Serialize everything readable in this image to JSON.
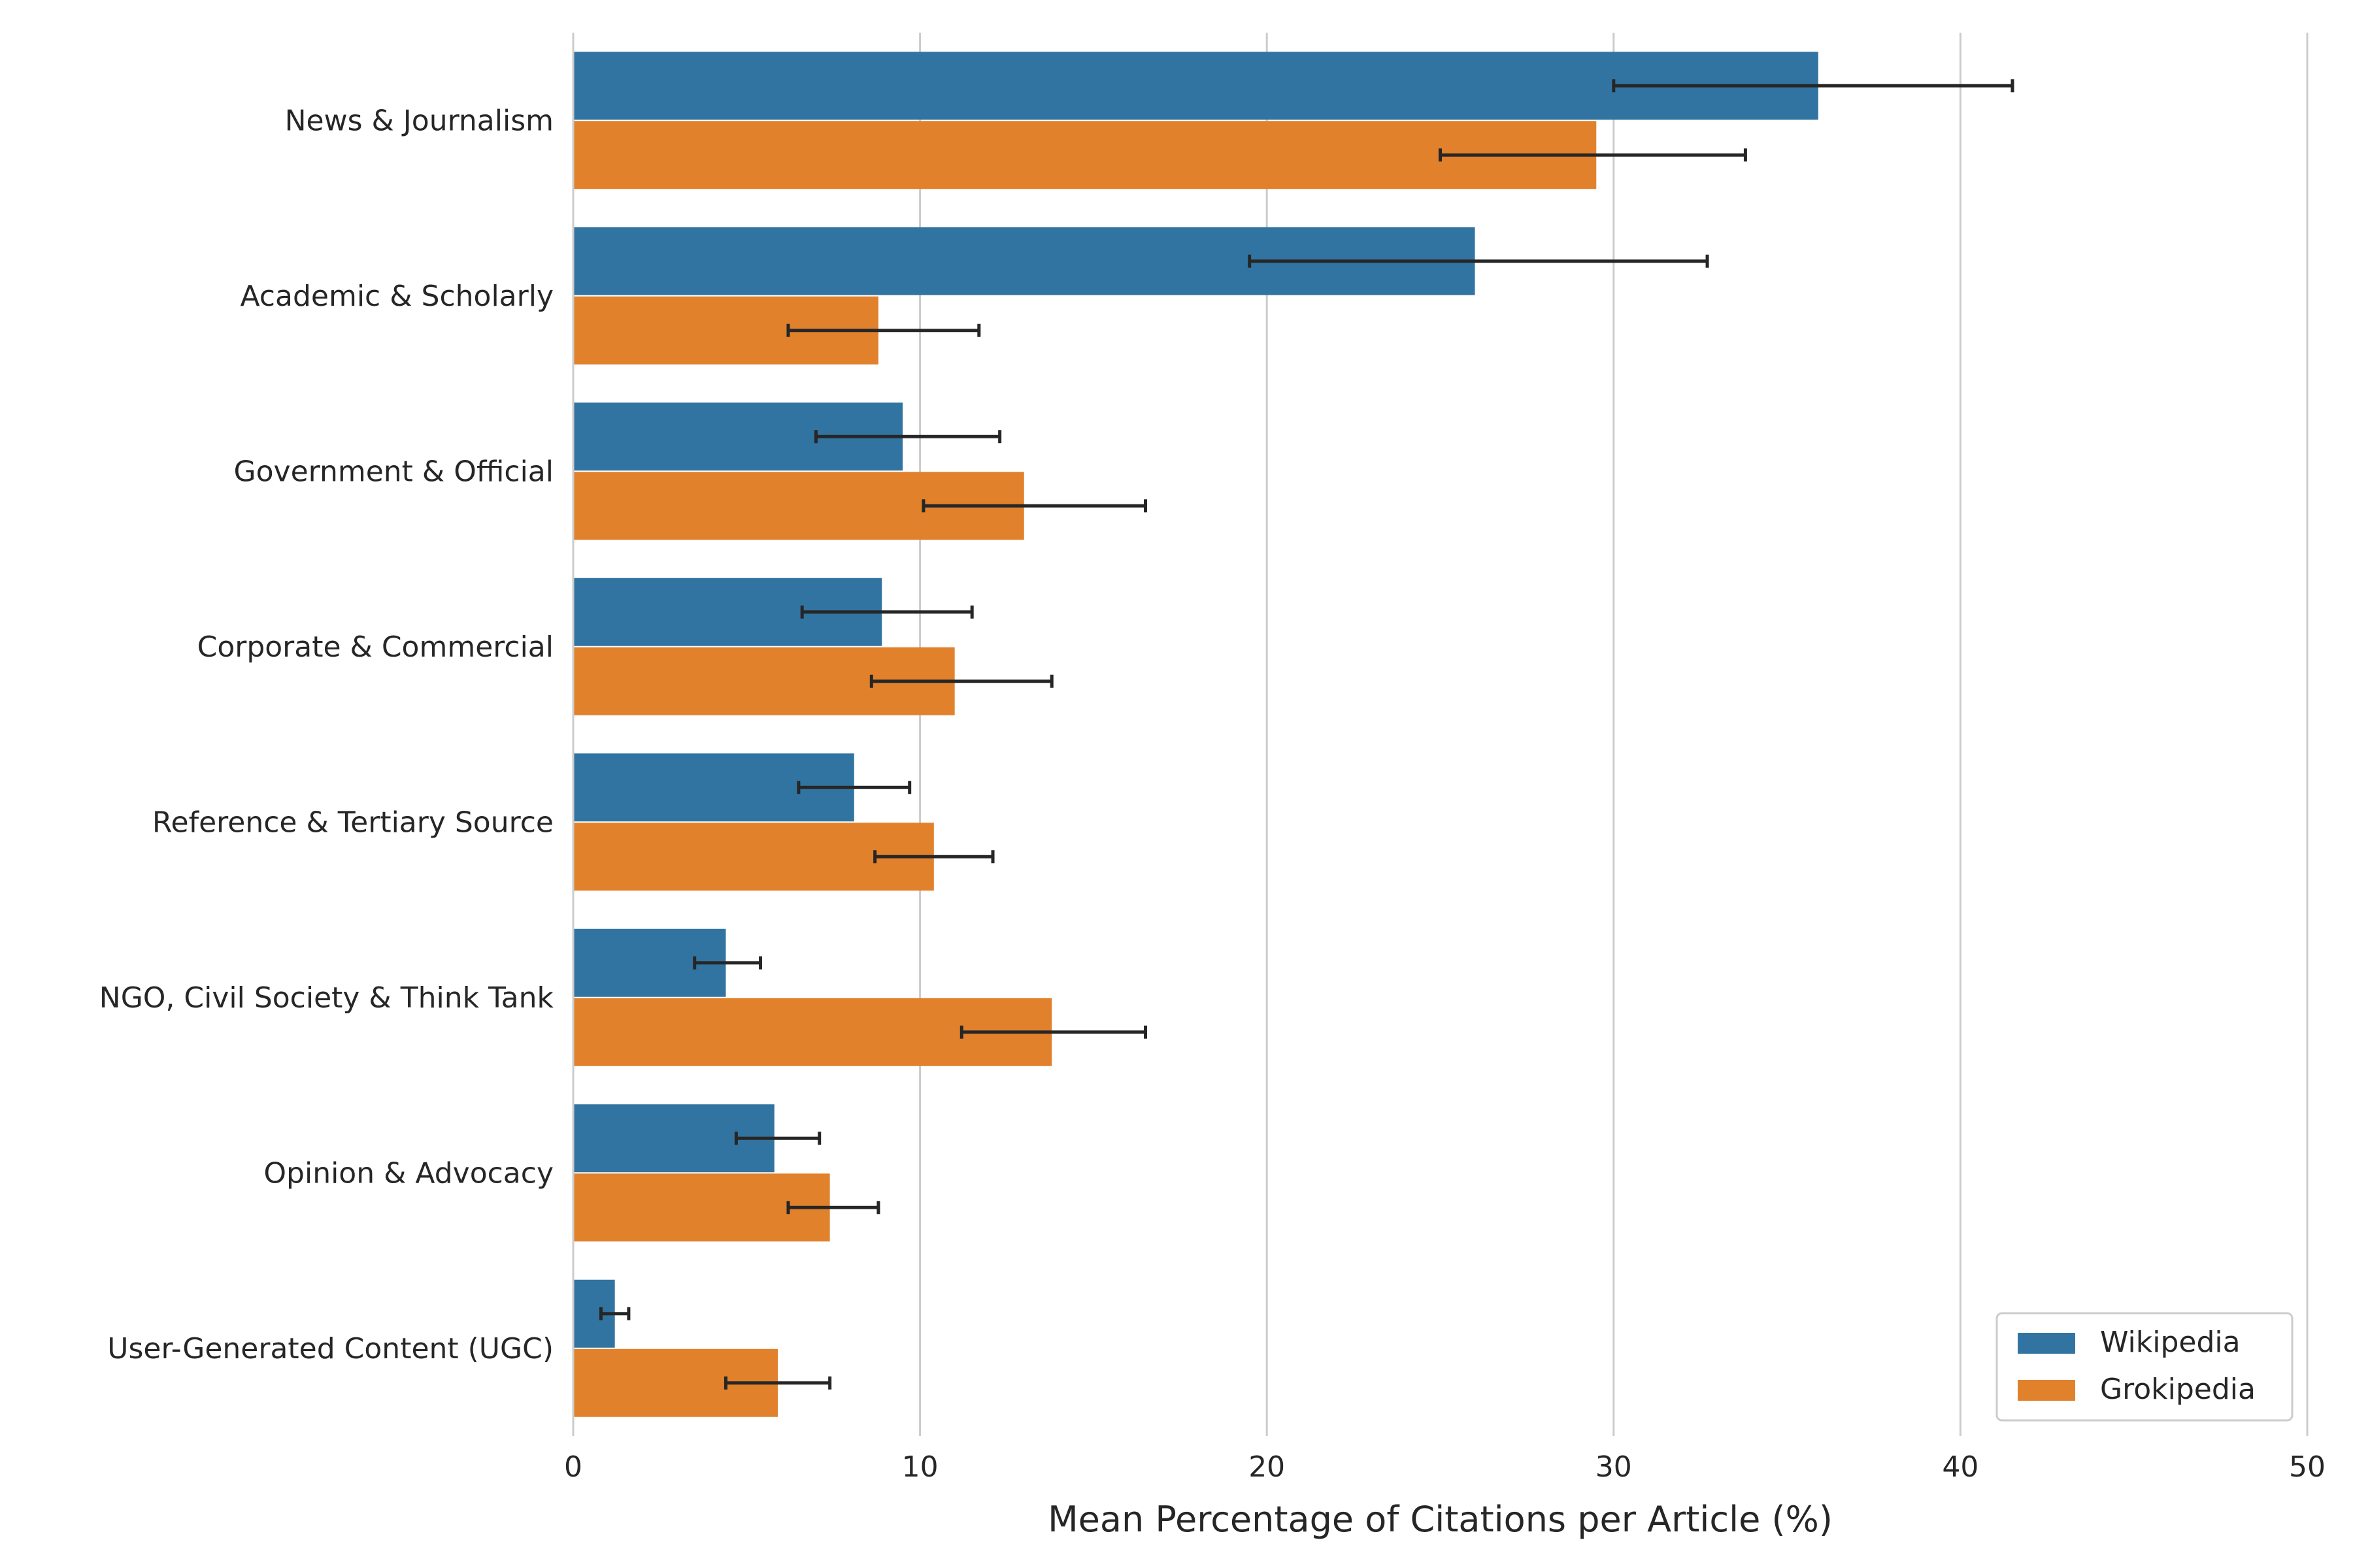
{
  "chart_data": {
    "type": "bar",
    "orientation": "horizontal",
    "title": "",
    "xlabel": "Mean Percentage of Citations per Article (%)",
    "ylabel": "",
    "xlim": [
      0,
      50
    ],
    "xticks": [
      0,
      10,
      20,
      30,
      40,
      50
    ],
    "grid": true,
    "legend_position": "bottom-right",
    "categories": [
      "News & Journalism",
      "Academic & Scholarly",
      "Government & Official",
      "Corporate & Commercial",
      "Reference & Tertiary Source",
      "NGO, Civil Society & Think Tank",
      "Opinion & Advocacy",
      "User-Generated Content (UGC)"
    ],
    "series": [
      {
        "name": "Wikipedia",
        "color": "#3274a1",
        "values": [
          35.9,
          26.0,
          9.5,
          8.9,
          8.1,
          4.4,
          5.8,
          1.2
        ],
        "error_low": [
          30.0,
          19.5,
          7.0,
          6.6,
          6.5,
          3.5,
          4.7,
          0.8
        ],
        "error_high": [
          41.5,
          32.7,
          12.3,
          11.5,
          9.7,
          5.4,
          7.1,
          1.6
        ]
      },
      {
        "name": "Grokipedia",
        "color": "#e1812c",
        "values": [
          29.5,
          8.8,
          13.0,
          11.0,
          10.4,
          13.8,
          7.4,
          5.9
        ],
        "error_low": [
          25.0,
          6.2,
          10.1,
          8.6,
          8.7,
          11.2,
          6.2,
          4.4
        ],
        "error_high": [
          33.8,
          11.7,
          16.5,
          13.8,
          12.1,
          16.5,
          8.8,
          7.4
        ]
      }
    ]
  }
}
